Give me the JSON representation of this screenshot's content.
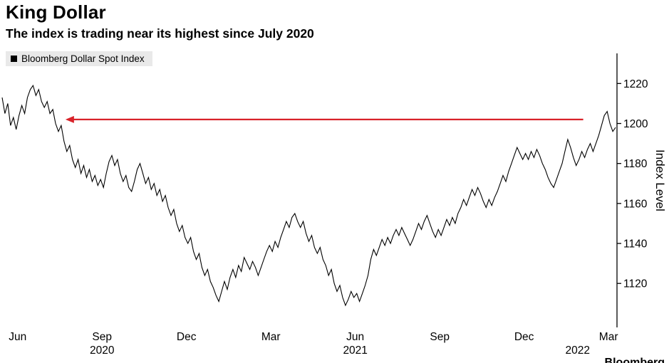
{
  "header": {
    "title": "King Dollar",
    "subtitle": "The index is trading near its highest since July 2020"
  },
  "legend": {
    "label": "Bloomberg Dollar Spot Index",
    "marker_color": "#000000",
    "position": "top-left"
  },
  "footer": {
    "attribution": "Bloomberg"
  },
  "chart_data": {
    "type": "line",
    "title": "King Dollar",
    "subtitle": "The index is trading near its highest since July 2020",
    "series_name": "Bloomberg Dollar Spot Index",
    "line_color": "#000000",
    "background": "#ffffff",
    "grid": false,
    "ylabel": "Index Level",
    "ylim": [
      1098,
      1234
    ],
    "y_ticks": [
      1120,
      1140,
      1160,
      1180,
      1200,
      1220
    ],
    "x_unit": "months since Jun 1 2020",
    "x_domain_months": [
      -0.55,
      21.3
    ],
    "x_ticks": [
      {
        "m": 0,
        "label": "Jun"
      },
      {
        "m": 3,
        "label": "Sep"
      },
      {
        "m": 6,
        "label": "Dec"
      },
      {
        "m": 9,
        "label": "Mar"
      },
      {
        "m": 12,
        "label": "Jun"
      },
      {
        "m": 15,
        "label": "Sep"
      },
      {
        "m": 18,
        "label": "Dec"
      },
      {
        "m": 21,
        "label": "Mar"
      }
    ],
    "year_labels": [
      {
        "m": 3,
        "label": "2020"
      },
      {
        "m": 12,
        "label": "2021"
      },
      {
        "m": 19.9,
        "label": "2022"
      }
    ],
    "x_start_month": -0.55,
    "x_step_month": 0.1,
    "values": [
      1213,
      1205,
      1210,
      1199,
      1203,
      1197,
      1204,
      1209,
      1205,
      1213,
      1217,
      1219,
      1214,
      1217,
      1211,
      1208,
      1211,
      1205,
      1207,
      1200,
      1196,
      1199,
      1191,
      1186,
      1189,
      1182,
      1178,
      1182,
      1175,
      1179,
      1173,
      1177,
      1171,
      1174,
      1169,
      1172,
      1168,
      1175,
      1181,
      1184,
      1179,
      1182,
      1175,
      1171,
      1174,
      1168,
      1166,
      1171,
      1177,
      1180,
      1175,
      1170,
      1173,
      1167,
      1170,
      1164,
      1167,
      1161,
      1164,
      1158,
      1154,
      1157,
      1150,
      1146,
      1149,
      1143,
      1140,
      1143,
      1136,
      1132,
      1135,
      1128,
      1124,
      1127,
      1121,
      1118,
      1114,
      1111,
      1116,
      1121,
      1117,
      1123,
      1127,
      1123,
      1129,
      1126,
      1133,
      1130,
      1127,
      1131,
      1128,
      1124,
      1128,
      1132,
      1136,
      1139,
      1136,
      1141,
      1138,
      1143,
      1147,
      1151,
      1148,
      1153,
      1155,
      1151,
      1148,
      1151,
      1145,
      1141,
      1144,
      1138,
      1135,
      1138,
      1132,
      1129,
      1124,
      1127,
      1120,
      1116,
      1119,
      1113,
      1109,
      1112,
      1116,
      1113,
      1115,
      1111,
      1115,
      1119,
      1124,
      1132,
      1137,
      1134,
      1138,
      1142,
      1139,
      1143,
      1140,
      1144,
      1147,
      1144,
      1148,
      1145,
      1142,
      1139,
      1142,
      1146,
      1150,
      1147,
      1151,
      1154,
      1150,
      1146,
      1143,
      1147,
      1144,
      1148,
      1152,
      1149,
      1153,
      1150,
      1155,
      1158,
      1162,
      1159,
      1163,
      1167,
      1164,
      1168,
      1165,
      1161,
      1158,
      1162,
      1159,
      1163,
      1166,
      1170,
      1174,
      1171,
      1176,
      1180,
      1184,
      1188,
      1185,
      1182,
      1185,
      1182,
      1186,
      1183,
      1187,
      1184,
      1180,
      1177,
      1173,
      1170,
      1168,
      1172,
      1176,
      1180,
      1186,
      1192,
      1188,
      1183,
      1179,
      1182,
      1186,
      1183,
      1187,
      1190,
      1186,
      1190,
      1194,
      1199,
      1204,
      1206,
      1200,
      1196,
      1198
    ],
    "annotation_arrow": {
      "value": 1202,
      "from_month": 20.1,
      "to_month": 1.7,
      "direction": "left",
      "color": "#d8232a"
    }
  }
}
